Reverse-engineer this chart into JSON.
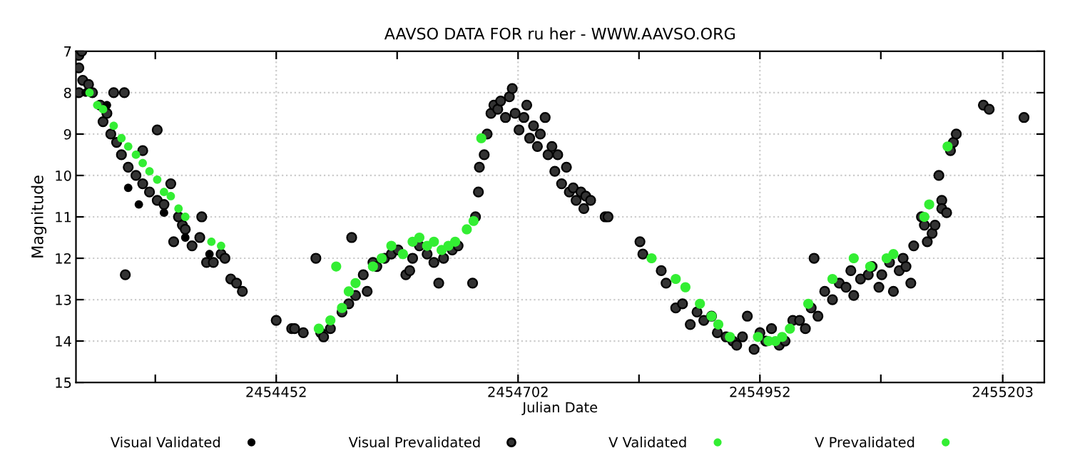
{
  "chart_data": {
    "type": "scatter",
    "title": "AAVSO DATA FOR ru her - WWW.AAVSO.ORG",
    "xlabel": "Julian Date",
    "ylabel": "Magnitude",
    "xlim": [
      2454245,
      2455246
    ],
    "ylim": [
      15,
      7
    ],
    "xticks": [
      {
        "value": 2454327,
        "label": null
      },
      2454452,
      {
        "value": 2454577,
        "label": null
      },
      2454702,
      {
        "value": 2454827,
        "label": null
      },
      2454952,
      {
        "value": 2455077,
        "label": null
      },
      2455203
    ],
    "yticks": [
      7,
      8,
      9,
      10,
      11,
      12,
      13,
      14,
      15
    ],
    "grid": true,
    "legend": "bottom",
    "series": [
      {
        "name": "Visual Validated",
        "color": "#000000",
        "marker": "circle",
        "x": [
          2454255,
          2454277,
          2454299,
          2454310,
          2454336,
          2454358,
          2454383
        ],
        "values": [
          8.0,
          8.3,
          10.3,
          10.7,
          10.9,
          11.5,
          11.9
        ]
      },
      {
        "name": "Visual Prevalidated",
        "color": "#000000",
        "marker": "circle",
        "x": [
          2454248,
          2454248,
          2454248,
          2454251,
          2454252,
          2454258,
          2454262,
          2454270,
          2454273,
          2454277,
          2454281,
          2454284,
          2454287,
          2454292,
          2454295,
          2454296,
          2454299,
          2454307,
          2454314,
          2454314,
          2454321,
          2454329,
          2454329,
          2454336,
          2454343,
          2454346,
          2454351,
          2454355,
          2454358,
          2454365,
          2454373,
          2454375,
          2454380,
          2454387,
          2454395,
          2454399,
          2454405,
          2454411,
          2454417,
          2454452,
          2454468,
          2454471,
          2454480,
          2454493,
          2454498,
          2454501,
          2454508,
          2454530,
          2454520,
          2454527,
          2454534,
          2454542,
          2454546,
          2454552,
          2454556,
          2454564,
          2454571,
          2454578,
          2454586,
          2454590,
          2454593,
          2454600,
          2454608,
          2454615,
          2454620,
          2454625,
          2454634,
          2454640,
          2454655,
          2454658,
          2454661,
          2454662,
          2454667,
          2454670,
          2454674,
          2454677,
          2454681,
          2454684,
          2454689,
          2454693,
          2454696,
          2454699,
          2454703,
          2454708,
          2454711,
          2454714,
          2454718,
          2454722,
          2454725,
          2454730,
          2454733,
          2454737,
          2454740,
          2454743,
          2454747,
          2454752,
          2454755,
          2454759,
          2454762,
          2454767,
          2454770,
          2454772,
          2454777,
          2454792,
          2454795,
          2454828,
          2454831,
          2454850,
          2454855,
          2454865,
          2454872,
          2454880,
          2454887,
          2454894,
          2454902,
          2454908,
          2454917,
          2454924,
          2454928,
          2454934,
          2454939,
          2454946,
          2454952,
          2454958,
          2454964,
          2454972,
          2454978,
          2454986,
          2454993,
          2454999,
          2455005,
          2455008,
          2455012,
          2455019,
          2455027,
          2455034,
          2455041,
          2455046,
          2455049,
          2455056,
          2455064,
          2455068,
          2455075,
          2455078,
          2455086,
          2455090,
          2455096,
          2455100,
          2455103,
          2455108,
          2455111,
          2455119,
          2455122,
          2455125,
          2455130,
          2455133,
          2455140,
          2455140,
          2455145,
          2455137,
          2455149,
          2455152,
          2455155,
          2455183,
          2455189,
          2455225
        ],
        "values": [
          7.1,
          7.4,
          8.0,
          7.0,
          7.7,
          7.8,
          8.0,
          8.3,
          8.7,
          8.5,
          9.0,
          8.0,
          9.2,
          9.5,
          8.0,
          12.4,
          9.8,
          10.0,
          9.4,
          10.2,
          10.4,
          8.9,
          10.6,
          10.7,
          10.2,
          11.6,
          11.0,
          11.2,
          11.3,
          11.7,
          11.5,
          11.0,
          12.1,
          12.1,
          11.9,
          12.0,
          12.5,
          12.6,
          12.8,
          13.5,
          13.7,
          13.7,
          13.8,
          12.0,
          13.8,
          13.9,
          13.7,
          11.5,
          13.3,
          13.1,
          12.9,
          12.4,
          12.8,
          12.1,
          12.2,
          12.0,
          11.9,
          11.8,
          12.4,
          12.3,
          12.0,
          11.7,
          11.9,
          12.1,
          12.6,
          12.0,
          11.8,
          11.7,
          12.6,
          11.0,
          10.4,
          9.8,
          9.5,
          9.0,
          8.5,
          8.3,
          8.4,
          8.2,
          8.6,
          8.1,
          7.9,
          8.5,
          8.9,
          8.6,
          8.3,
          9.1,
          8.8,
          9.3,
          9.0,
          8.6,
          9.5,
          9.3,
          9.9,
          9.5,
          10.2,
          9.8,
          10.4,
          10.3,
          10.6,
          10.4,
          10.8,
          10.5,
          10.6,
          11.0,
          11.0,
          11.6,
          11.9,
          12.3,
          12.6,
          13.2,
          13.1,
          13.6,
          13.3,
          13.5,
          13.4,
          13.8,
          13.9,
          14.0,
          14.1,
          13.9,
          13.4,
          14.2,
          13.8,
          14.0,
          13.7,
          14.1,
          14.0,
          13.5,
          13.5,
          13.7,
          13.2,
          12.0,
          13.4,
          12.8,
          13.0,
          12.6,
          12.7,
          12.3,
          12.9,
          12.5,
          12.4,
          12.2,
          12.7,
          12.4,
          12.1,
          12.8,
          12.3,
          12.0,
          12.2,
          12.6,
          11.7,
          11.0,
          11.2,
          11.6,
          11.4,
          11.2,
          10.6,
          10.8,
          10.9,
          10.0,
          9.4,
          9.2,
          9.0,
          8.3,
          8.4,
          8.6
        ]
      },
      {
        "name": "V Validated",
        "color": "#33ee33",
        "marker": "circle",
        "x": [
          2454259,
          2454267,
          2454273,
          2454284,
          2454292,
          2454299,
          2454307,
          2454314,
          2454321,
          2454329,
          2454336,
          2454343,
          2454351,
          2454358,
          2454385,
          2454395
        ],
        "values": [
          8.0,
          8.3,
          8.4,
          8.8,
          9.1,
          9.3,
          9.5,
          9.7,
          9.9,
          10.1,
          10.4,
          10.5,
          10.8,
          11.0,
          11.6,
          11.7
        ]
      },
      {
        "name": "V Prevalidated",
        "color": "#33ee33",
        "marker": "circle",
        "x": [
          2454496,
          2454508,
          2454514,
          2454520,
          2454527,
          2454534,
          2454552,
          2454561,
          2454571,
          2454583,
          2454593,
          2454600,
          2454608,
          2454615,
          2454623,
          2454630,
          2454637,
          2454649,
          2454656,
          2454664,
          2454840,
          2454865,
          2454875,
          2454890,
          2454902,
          2454909,
          2454921,
          2454950,
          2454961,
          2454968,
          2454975,
          2454983,
          2455002,
          2455027,
          2455049,
          2455066,
          2455083,
          2455090,
          2455122,
          2455127,
          2455146
        ],
        "values": [
          13.7,
          13.5,
          12.2,
          13.2,
          12.8,
          12.6,
          12.2,
          12.0,
          11.7,
          11.9,
          11.6,
          11.5,
          11.7,
          11.6,
          11.8,
          11.7,
          11.6,
          11.3,
          11.1,
          9.1,
          12.0,
          12.5,
          12.7,
          13.1,
          13.4,
          13.6,
          13.9,
          13.9,
          14.0,
          14.0,
          13.9,
          13.7,
          13.1,
          12.5,
          12.0,
          12.2,
          12.0,
          11.9,
          11.0,
          10.7,
          9.3
        ]
      }
    ]
  }
}
